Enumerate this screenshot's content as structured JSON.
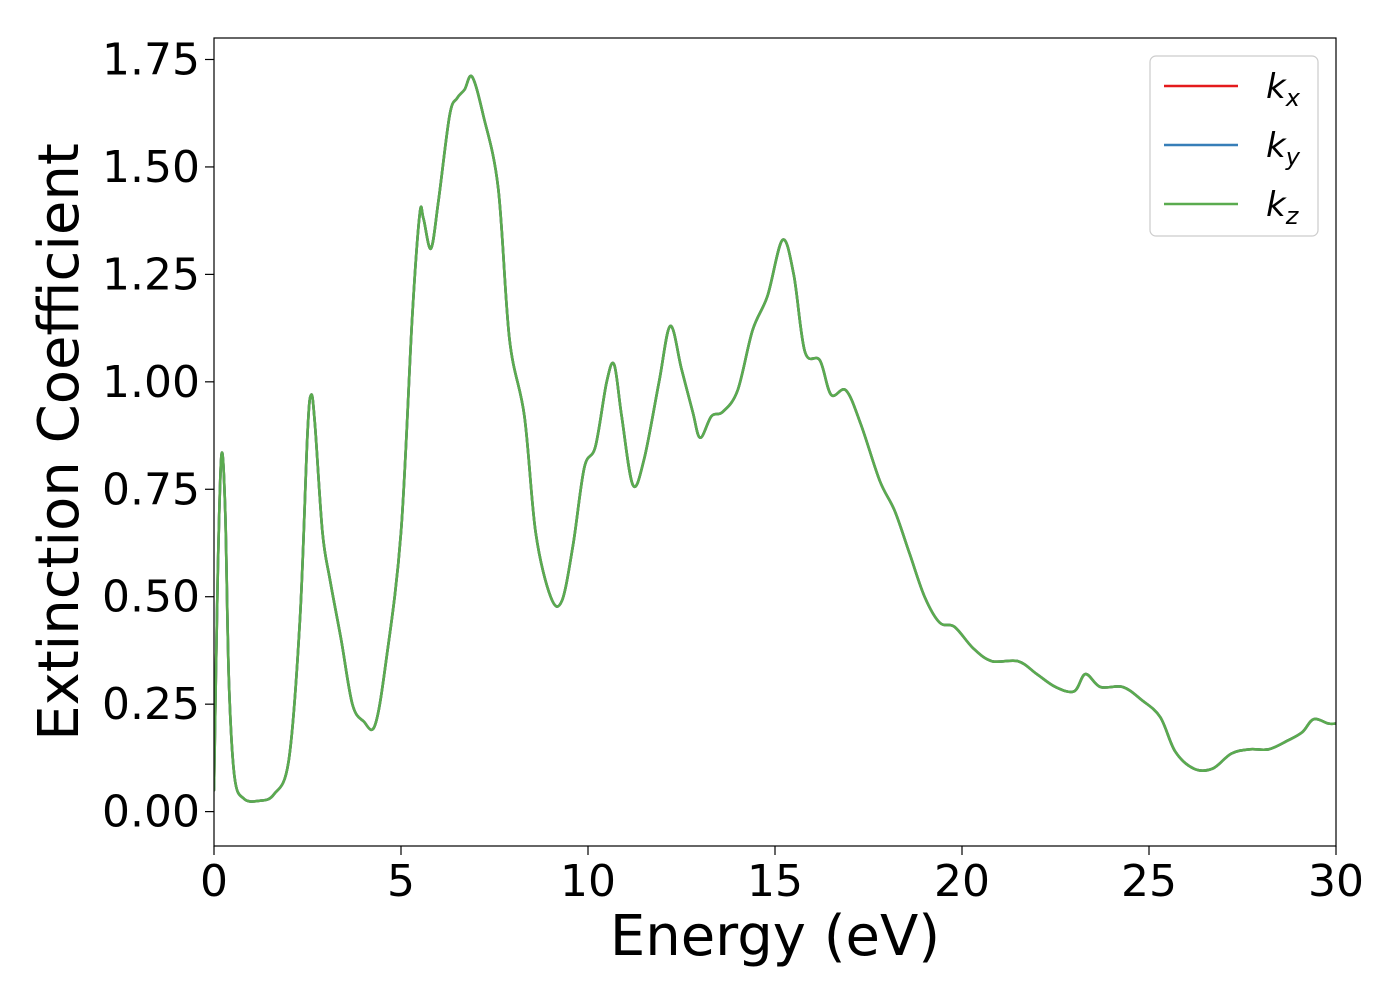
{
  "chart_data": {
    "type": "line",
    "title": "",
    "xlabel": "Energy (eV)",
    "ylabel": "Extinction Coefficient",
    "xlim": [
      0,
      30
    ],
    "ylim": [
      -0.08,
      1.8
    ],
    "x_ticks": [
      0,
      5,
      10,
      15,
      20,
      25,
      30
    ],
    "x_tick_labels": [
      "0",
      "5",
      "10",
      "15",
      "20",
      "25",
      "30"
    ],
    "y_ticks": [
      0,
      0.25,
      0.5,
      0.75,
      1.0,
      1.25,
      1.5,
      1.75
    ],
    "y_tick_labels": [
      "0.00",
      "0.25",
      "0.50",
      "0.75",
      "1.00",
      "1.25",
      "1.50",
      "1.75"
    ],
    "grid": false,
    "legend_position": "top-right",
    "series": [
      {
        "name": "k_x",
        "legend_base": "k",
        "legend_sub": "x",
        "color": "#e41a1c",
        "points": [
          [
            0,
            0.05
          ],
          [
            0.1,
            0.55
          ],
          [
            0.2,
            0.83
          ],
          [
            0.3,
            0.7
          ],
          [
            0.4,
            0.3
          ],
          [
            0.55,
            0.08
          ],
          [
            0.8,
            0.03
          ],
          [
            1.2,
            0.025
          ],
          [
            1.6,
            0.04
          ],
          [
            2.0,
            0.12
          ],
          [
            2.3,
            0.45
          ],
          [
            2.5,
            0.88
          ],
          [
            2.6,
            0.97
          ],
          [
            2.7,
            0.9
          ],
          [
            2.9,
            0.65
          ],
          [
            3.1,
            0.54
          ],
          [
            3.4,
            0.4
          ],
          [
            3.7,
            0.25
          ],
          [
            4.0,
            0.21
          ],
          [
            4.3,
            0.2
          ],
          [
            4.6,
            0.35
          ],
          [
            5.0,
            0.65
          ],
          [
            5.3,
            1.15
          ],
          [
            5.5,
            1.39
          ],
          [
            5.6,
            1.38
          ],
          [
            5.8,
            1.31
          ],
          [
            6.0,
            1.42
          ],
          [
            6.3,
            1.62
          ],
          [
            6.5,
            1.66
          ],
          [
            6.7,
            1.68
          ],
          [
            6.9,
            1.71
          ],
          [
            7.2,
            1.62
          ],
          [
            7.6,
            1.45
          ],
          [
            7.9,
            1.1
          ],
          [
            8.3,
            0.92
          ],
          [
            8.6,
            0.65
          ],
          [
            9.0,
            0.5
          ],
          [
            9.3,
            0.49
          ],
          [
            9.6,
            0.62
          ],
          [
            9.9,
            0.8
          ],
          [
            10.2,
            0.85
          ],
          [
            10.5,
            1.0
          ],
          [
            10.7,
            1.04
          ],
          [
            10.9,
            0.92
          ],
          [
            11.2,
            0.76
          ],
          [
            11.5,
            0.82
          ],
          [
            11.9,
            1.0
          ],
          [
            12.2,
            1.13
          ],
          [
            12.5,
            1.03
          ],
          [
            12.8,
            0.93
          ],
          [
            13.0,
            0.87
          ],
          [
            13.3,
            0.92
          ],
          [
            13.6,
            0.93
          ],
          [
            14.0,
            0.98
          ],
          [
            14.4,
            1.12
          ],
          [
            14.8,
            1.2
          ],
          [
            15.2,
            1.33
          ],
          [
            15.5,
            1.25
          ],
          [
            15.8,
            1.07
          ],
          [
            16.2,
            1.05
          ],
          [
            16.5,
            0.97
          ],
          [
            16.9,
            0.98
          ],
          [
            17.3,
            0.9
          ],
          [
            17.8,
            0.77
          ],
          [
            18.2,
            0.7
          ],
          [
            18.6,
            0.6
          ],
          [
            19.0,
            0.5
          ],
          [
            19.4,
            0.44
          ],
          [
            19.8,
            0.43
          ],
          [
            20.3,
            0.38
          ],
          [
            20.8,
            0.35
          ],
          [
            21.5,
            0.35
          ],
          [
            22.0,
            0.32
          ],
          [
            22.5,
            0.29
          ],
          [
            23.0,
            0.28
          ],
          [
            23.3,
            0.32
          ],
          [
            23.7,
            0.29
          ],
          [
            24.3,
            0.29
          ],
          [
            24.8,
            0.26
          ],
          [
            25.3,
            0.22
          ],
          [
            25.7,
            0.14
          ],
          [
            26.2,
            0.1
          ],
          [
            26.7,
            0.1
          ],
          [
            27.2,
            0.135
          ],
          [
            27.7,
            0.145
          ],
          [
            28.2,
            0.145
          ],
          [
            28.7,
            0.165
          ],
          [
            29.1,
            0.185
          ],
          [
            29.4,
            0.215
          ],
          [
            29.8,
            0.205
          ],
          [
            30.0,
            0.205
          ]
        ]
      },
      {
        "name": "k_y",
        "legend_base": "k",
        "legend_sub": "y",
        "color": "#377eb8",
        "points": [
          [
            0,
            0.05
          ],
          [
            0.1,
            0.55
          ],
          [
            0.2,
            0.83
          ],
          [
            0.3,
            0.7
          ],
          [
            0.4,
            0.3
          ],
          [
            0.55,
            0.08
          ],
          [
            0.8,
            0.03
          ],
          [
            1.2,
            0.025
          ],
          [
            1.6,
            0.04
          ],
          [
            2.0,
            0.12
          ],
          [
            2.3,
            0.45
          ],
          [
            2.5,
            0.88
          ],
          [
            2.6,
            0.97
          ],
          [
            2.7,
            0.9
          ],
          [
            2.9,
            0.65
          ],
          [
            3.1,
            0.54
          ],
          [
            3.4,
            0.4
          ],
          [
            3.7,
            0.25
          ],
          [
            4.0,
            0.21
          ],
          [
            4.3,
            0.2
          ],
          [
            4.6,
            0.35
          ],
          [
            5.0,
            0.65
          ],
          [
            5.3,
            1.15
          ],
          [
            5.5,
            1.39
          ],
          [
            5.6,
            1.38
          ],
          [
            5.8,
            1.31
          ],
          [
            6.0,
            1.42
          ],
          [
            6.3,
            1.62
          ],
          [
            6.5,
            1.66
          ],
          [
            6.7,
            1.68
          ],
          [
            6.9,
            1.71
          ],
          [
            7.2,
            1.62
          ],
          [
            7.6,
            1.45
          ],
          [
            7.9,
            1.1
          ],
          [
            8.3,
            0.92
          ],
          [
            8.6,
            0.65
          ],
          [
            9.0,
            0.5
          ],
          [
            9.3,
            0.49
          ],
          [
            9.6,
            0.62
          ],
          [
            9.9,
            0.8
          ],
          [
            10.2,
            0.85
          ],
          [
            10.5,
            1.0
          ],
          [
            10.7,
            1.04
          ],
          [
            10.9,
            0.92
          ],
          [
            11.2,
            0.76
          ],
          [
            11.5,
            0.82
          ],
          [
            11.9,
            1.0
          ],
          [
            12.2,
            1.13
          ],
          [
            12.5,
            1.03
          ],
          [
            12.8,
            0.93
          ],
          [
            13.0,
            0.87
          ],
          [
            13.3,
            0.92
          ],
          [
            13.6,
            0.93
          ],
          [
            14.0,
            0.98
          ],
          [
            14.4,
            1.12
          ],
          [
            14.8,
            1.2
          ],
          [
            15.2,
            1.33
          ],
          [
            15.5,
            1.25
          ],
          [
            15.8,
            1.07
          ],
          [
            16.2,
            1.05
          ],
          [
            16.5,
            0.97
          ],
          [
            16.9,
            0.98
          ],
          [
            17.3,
            0.9
          ],
          [
            17.8,
            0.77
          ],
          [
            18.2,
            0.7
          ],
          [
            18.6,
            0.6
          ],
          [
            19.0,
            0.5
          ],
          [
            19.4,
            0.44
          ],
          [
            19.8,
            0.43
          ],
          [
            20.3,
            0.38
          ],
          [
            20.8,
            0.35
          ],
          [
            21.5,
            0.35
          ],
          [
            22.0,
            0.32
          ],
          [
            22.5,
            0.29
          ],
          [
            23.0,
            0.28
          ],
          [
            23.3,
            0.32
          ],
          [
            23.7,
            0.29
          ],
          [
            24.3,
            0.29
          ],
          [
            24.8,
            0.26
          ],
          [
            25.3,
            0.22
          ],
          [
            25.7,
            0.14
          ],
          [
            26.2,
            0.1
          ],
          [
            26.7,
            0.1
          ],
          [
            27.2,
            0.135
          ],
          [
            27.7,
            0.145
          ],
          [
            28.2,
            0.145
          ],
          [
            28.7,
            0.165
          ],
          [
            29.1,
            0.185
          ],
          [
            29.4,
            0.215
          ],
          [
            29.8,
            0.205
          ],
          [
            30.0,
            0.205
          ]
        ]
      },
      {
        "name": "k_z",
        "legend_base": "k",
        "legend_sub": "z",
        "color": "#5aab4f",
        "points": [
          [
            0,
            0.05
          ],
          [
            0.1,
            0.55
          ],
          [
            0.2,
            0.83
          ],
          [
            0.3,
            0.7
          ],
          [
            0.4,
            0.3
          ],
          [
            0.55,
            0.08
          ],
          [
            0.8,
            0.03
          ],
          [
            1.2,
            0.025
          ],
          [
            1.6,
            0.04
          ],
          [
            2.0,
            0.12
          ],
          [
            2.3,
            0.45
          ],
          [
            2.5,
            0.88
          ],
          [
            2.6,
            0.97
          ],
          [
            2.7,
            0.9
          ],
          [
            2.9,
            0.65
          ],
          [
            3.1,
            0.54
          ],
          [
            3.4,
            0.4
          ],
          [
            3.7,
            0.25
          ],
          [
            4.0,
            0.21
          ],
          [
            4.3,
            0.2
          ],
          [
            4.6,
            0.35
          ],
          [
            5.0,
            0.65
          ],
          [
            5.3,
            1.15
          ],
          [
            5.5,
            1.39
          ],
          [
            5.6,
            1.38
          ],
          [
            5.8,
            1.31
          ],
          [
            6.0,
            1.42
          ],
          [
            6.3,
            1.62
          ],
          [
            6.5,
            1.66
          ],
          [
            6.7,
            1.68
          ],
          [
            6.9,
            1.71
          ],
          [
            7.2,
            1.62
          ],
          [
            7.6,
            1.45
          ],
          [
            7.9,
            1.1
          ],
          [
            8.3,
            0.92
          ],
          [
            8.6,
            0.65
          ],
          [
            9.0,
            0.5
          ],
          [
            9.3,
            0.49
          ],
          [
            9.6,
            0.62
          ],
          [
            9.9,
            0.8
          ],
          [
            10.2,
            0.85
          ],
          [
            10.5,
            1.0
          ],
          [
            10.7,
            1.04
          ],
          [
            10.9,
            0.92
          ],
          [
            11.2,
            0.76
          ],
          [
            11.5,
            0.82
          ],
          [
            11.9,
            1.0
          ],
          [
            12.2,
            1.13
          ],
          [
            12.5,
            1.03
          ],
          [
            12.8,
            0.93
          ],
          [
            13.0,
            0.87
          ],
          [
            13.3,
            0.92
          ],
          [
            13.6,
            0.93
          ],
          [
            14.0,
            0.98
          ],
          [
            14.4,
            1.12
          ],
          [
            14.8,
            1.2
          ],
          [
            15.2,
            1.33
          ],
          [
            15.5,
            1.25
          ],
          [
            15.8,
            1.07
          ],
          [
            16.2,
            1.05
          ],
          [
            16.5,
            0.97
          ],
          [
            16.9,
            0.98
          ],
          [
            17.3,
            0.9
          ],
          [
            17.8,
            0.77
          ],
          [
            18.2,
            0.7
          ],
          [
            18.6,
            0.6
          ],
          [
            19.0,
            0.5
          ],
          [
            19.4,
            0.44
          ],
          [
            19.8,
            0.43
          ],
          [
            20.3,
            0.38
          ],
          [
            20.8,
            0.35
          ],
          [
            21.5,
            0.35
          ],
          [
            22.0,
            0.32
          ],
          [
            22.5,
            0.29
          ],
          [
            23.0,
            0.28
          ],
          [
            23.3,
            0.32
          ],
          [
            23.7,
            0.29
          ],
          [
            24.3,
            0.29
          ],
          [
            24.8,
            0.26
          ],
          [
            25.3,
            0.22
          ],
          [
            25.7,
            0.14
          ],
          [
            26.2,
            0.1
          ],
          [
            26.7,
            0.1
          ],
          [
            27.2,
            0.135
          ],
          [
            27.7,
            0.145
          ],
          [
            28.2,
            0.145
          ],
          [
            28.7,
            0.165
          ],
          [
            29.1,
            0.185
          ],
          [
            29.4,
            0.215
          ],
          [
            29.8,
            0.205
          ],
          [
            30.0,
            0.205
          ]
        ]
      }
    ]
  }
}
